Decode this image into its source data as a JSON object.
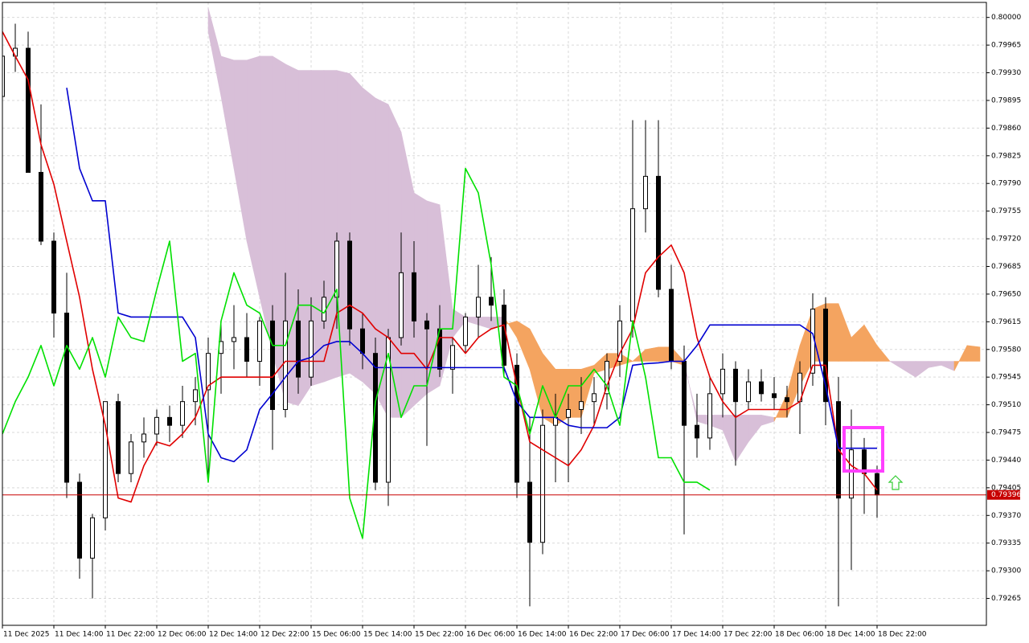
{
  "chart_data": {
    "type": "candlestick",
    "xlim": [
      0,
      153
    ],
    "ylim": [
      0.79231,
      0.80019
    ],
    "grid": true,
    "xticks": [
      {
        "value": 0,
        "label": "11 Dec 2025"
      },
      {
        "value": 8,
        "label": "11 Dec 14:00"
      },
      {
        "value": 16,
        "label": "11 Dec 22:00"
      },
      {
        "value": 24,
        "label": "12 Dec 06:00"
      },
      {
        "value": 32,
        "label": "12 Dec 14:00"
      },
      {
        "value": 40,
        "label": "12 Dec 22:00"
      },
      {
        "value": 48,
        "label": "15 Dec 06:00"
      },
      {
        "value": 56,
        "label": "15 Dec 14:00"
      },
      {
        "value": 64,
        "label": "15 Dec 22:00"
      },
      {
        "value": 72,
        "label": "16 Dec 06:00"
      },
      {
        "value": 80,
        "label": "16 Dec 14:00"
      },
      {
        "value": 88,
        "label": "16 Dec 22:00"
      },
      {
        "value": 96,
        "label": "17 Dec 06:00"
      },
      {
        "value": 104,
        "label": "17 Dec 14:00"
      },
      {
        "value": 112,
        "label": "17 Dec 22:00"
      },
      {
        "value": 120,
        "label": "18 Dec 06:00"
      },
      {
        "value": 128,
        "label": "18 Dec 14:00"
      },
      {
        "value": 136,
        "label": "18 Dec 22:00"
      }
    ],
    "yticks": [
      0.79265,
      {
        "value": 0.793,
        "label": "0.79300"
      },
      0.79335,
      {
        "value": 0.7937,
        "label": "0.79370"
      },
      0.79405,
      {
        "value": 0.7944,
        "label": "0.79440"
      },
      0.79475,
      {
        "value": 0.7951,
        "label": "0.79510"
      },
      0.79545,
      {
        "value": 0.7958,
        "label": "0.79580"
      },
      0.79615,
      {
        "value": 0.7965,
        "label": "0.79650"
      },
      0.79685,
      {
        "value": 0.7972,
        "label": "0.79720"
      },
      0.79755,
      {
        "value": 0.7979,
        "label": "0.79790"
      },
      0.79825,
      {
        "value": 0.7986,
        "label": "0.79860"
      },
      0.79895,
      {
        "value": 0.7993,
        "label": "0.79930"
      },
      0.79965,
      {
        "value": 0.8,
        "label": "0.80000"
      }
    ],
    "candles": {
      "up_color": "#ffffff",
      "down_color": "#000000",
      "x": [
        0,
        2,
        4,
        6,
        8,
        10,
        12,
        14,
        16,
        18,
        20,
        22,
        24,
        26,
        28,
        30,
        32,
        34,
        36,
        38,
        40,
        42,
        44,
        46,
        48,
        50,
        52,
        54,
        56,
        58,
        60,
        62,
        64,
        66,
        68,
        70,
        72,
        74,
        76,
        78,
        80,
        82,
        84,
        86,
        88,
        90,
        92,
        94,
        96,
        98,
        100,
        102,
        104,
        106,
        108,
        110,
        112,
        114,
        116,
        118,
        120,
        122,
        124,
        126,
        128,
        130,
        132,
        134,
        136
      ],
      "open": [
        0.799,
        0.79951,
        0.79961,
        0.79804,
        0.79717,
        0.79626,
        0.79412,
        0.79316,
        0.79367,
        0.79514,
        0.79423,
        0.79463,
        0.79473,
        0.79494,
        0.79484,
        0.79514,
        0.79529,
        0.79575,
        0.7959,
        0.79595,
        0.79565,
        0.79616,
        0.79504,
        0.79616,
        0.79545,
        0.79616,
        0.79646,
        0.79717,
        0.79606,
        0.79575,
        0.79412,
        0.79595,
        0.79677,
        0.79616,
        0.79606,
        0.79555,
        0.79585,
        0.79621,
        0.79646,
        0.79636,
        0.7956,
        0.79412,
        0.79336,
        0.79484,
        0.79494,
        0.79504,
        0.79514,
        0.79524,
        0.79565,
        0.79616,
        0.79758,
        0.79799,
        0.79656,
        0.79565,
        0.79484,
        0.79468,
        0.79524,
        0.79555,
        0.79514,
        0.79539,
        0.79524,
        0.79519,
        0.79514,
        0.7955,
        0.79631,
        0.79514,
        0.79392,
        0.79453,
        0.79423
      ],
      "high": [
        0.79992,
        0.79992,
        0.79982,
        0.7989,
        0.79728,
        0.79677,
        0.79423,
        0.79372,
        0.79514,
        0.79524,
        0.79473,
        0.79494,
        0.79504,
        0.79509,
        0.79534,
        0.79545,
        0.79595,
        0.79616,
        0.79636,
        0.79626,
        0.79621,
        0.79636,
        0.79677,
        0.79656,
        0.79646,
        0.79667,
        0.79728,
        0.79728,
        0.79626,
        0.79595,
        0.79606,
        0.79728,
        0.79717,
        0.79626,
        0.79636,
        0.79595,
        0.79626,
        0.79687,
        0.79697,
        0.79656,
        0.79575,
        0.79494,
        0.79504,
        0.79524,
        0.79524,
        0.79545,
        0.79545,
        0.79575,
        0.79636,
        0.7987,
        0.7987,
        0.7987,
        0.79687,
        0.79585,
        0.79524,
        0.79545,
        0.79575,
        0.79565,
        0.79555,
        0.79555,
        0.79545,
        0.79534,
        0.79565,
        0.79651,
        0.79646,
        0.79545,
        0.79504,
        0.79468,
        0.79433
      ],
      "low": [
        0.7989,
        0.79931,
        0.79804,
        0.79712,
        0.79595,
        0.79392,
        0.7929,
        0.79265,
        0.79351,
        0.79412,
        0.79412,
        0.79443,
        0.79458,
        0.79463,
        0.79468,
        0.79484,
        0.79412,
        0.79524,
        0.79555,
        0.79545,
        0.79534,
        0.79453,
        0.79494,
        0.79524,
        0.79534,
        0.79606,
        0.79606,
        0.79585,
        0.79555,
        0.79402,
        0.79382,
        0.79585,
        0.79595,
        0.79458,
        0.79545,
        0.79524,
        0.79575,
        0.79595,
        0.79616,
        0.79545,
        0.79392,
        0.79255,
        0.79321,
        0.79412,
        0.79412,
        0.79473,
        0.79484,
        0.79504,
        0.79545,
        0.79595,
        0.79728,
        0.79646,
        0.79555,
        0.79346,
        0.79443,
        0.79453,
        0.79494,
        0.79433,
        0.79504,
        0.79514,
        0.79504,
        0.79494,
        0.79473,
        0.79534,
        0.79484,
        0.79255,
        0.79301,
        0.79372,
        0.79367
      ],
      "close": [
        0.79951,
        0.79961,
        0.79804,
        0.79717,
        0.79626,
        0.79412,
        0.79316,
        0.79367,
        0.79514,
        0.79423,
        0.79463,
        0.79473,
        0.79494,
        0.79484,
        0.79514,
        0.79529,
        0.79575,
        0.7959,
        0.79595,
        0.79565,
        0.79616,
        0.79504,
        0.79616,
        0.79545,
        0.79616,
        0.79646,
        0.79717,
        0.79606,
        0.79575,
        0.79412,
        0.79595,
        0.79677,
        0.79616,
        0.79606,
        0.79555,
        0.79585,
        0.79621,
        0.79646,
        0.79636,
        0.7956,
        0.79412,
        0.79336,
        0.79484,
        0.79494,
        0.79504,
        0.79514,
        0.79524,
        0.79565,
        0.79616,
        0.79758,
        0.79799,
        0.79656,
        0.79565,
        0.79484,
        0.79468,
        0.79524,
        0.79555,
        0.79514,
        0.79539,
        0.79524,
        0.79519,
        0.79514,
        0.7955,
        0.79631,
        0.79514,
        0.79392,
        0.79453,
        0.79423,
        0.79396
      ]
    },
    "lines": [
      {
        "color": "#e00000",
        "values": [
          0.79982,
          0.79951,
          0.79921,
          0.79839,
          0.79789,
          0.79717,
          0.79646,
          0.79555,
          0.79484,
          0.79392,
          0.79387,
          0.79433,
          0.79463,
          0.79458,
          0.79473,
          0.79494,
          0.79534,
          0.79545,
          0.79545,
          0.79545,
          0.79545,
          0.79545,
          0.79565,
          0.79565,
          0.79565,
          0.79565,
          0.79626,
          0.79636,
          0.79626,
          0.79606,
          0.79595,
          0.79575,
          0.79575,
          0.79555,
          0.79595,
          0.79595,
          0.79575,
          0.79595,
          0.79606,
          0.79611,
          0.79534,
          0.79463,
          0.79453,
          0.79443,
          0.79433,
          0.79453,
          0.79484,
          0.79534,
          0.79575,
          0.79606,
          0.79677,
          0.79697,
          0.79712,
          0.79677,
          0.79595,
          0.79545,
          0.79514,
          0.79494,
          0.79504,
          0.79504,
          0.79504,
          0.79504,
          0.79514,
          0.7956,
          0.7956,
          0.79453,
          0.79433,
          0.79423,
          0.79402
        ]
      },
      {
        "color": "#0000d0",
        "values": [
          null,
          null,
          null,
          null,
          null,
          0.79911,
          0.79809,
          0.79768,
          0.79768,
          0.79626,
          0.79621,
          0.79621,
          0.79621,
          0.79621,
          0.79621,
          0.79595,
          0.79473,
          0.79443,
          0.79438,
          0.79453,
          0.79504,
          0.79524,
          0.79545,
          0.79565,
          0.7957,
          0.79585,
          0.7959,
          0.7959,
          0.79575,
          0.79557,
          0.79557,
          0.79557,
          0.79557,
          0.79557,
          0.79557,
          0.79557,
          0.79557,
          0.79557,
          0.79557,
          0.79557,
          0.79514,
          0.79494,
          0.79494,
          0.79494,
          0.79484,
          0.79481,
          0.79481,
          0.79481,
          0.79494,
          0.7956,
          0.79562,
          0.79563,
          0.79565,
          0.79565,
          0.79585,
          0.79611,
          0.79611,
          0.79611,
          0.79611,
          0.79611,
          0.79611,
          0.79611,
          0.79611,
          0.796,
          0.79534,
          0.79455,
          0.79455,
          0.79455,
          0.79455
        ]
      },
      {
        "color": "#00e000",
        "values": [
          0.79473,
          0.79514,
          0.79545,
          0.79585,
          0.79534,
          0.79585,
          0.79555,
          0.79595,
          0.79545,
          0.79621,
          0.79595,
          0.7959,
          0.79656,
          0.79717,
          0.79565,
          0.79575,
          0.79412,
          0.79616,
          0.79677,
          0.79636,
          0.79626,
          0.79585,
          0.79585,
          0.79636,
          0.79636,
          0.79626,
          0.79656,
          0.79392,
          0.79341,
          0.79514,
          0.79575,
          0.79494,
          0.79534,
          0.79534,
          0.79606,
          0.79606,
          0.79809,
          0.79778,
          0.79687,
          0.79545,
          0.79534,
          0.79473,
          0.79534,
          0.79494,
          0.79534,
          0.79534,
          0.79555,
          0.79534,
          0.79484,
          0.79616,
          0.79545,
          0.79443,
          0.79443,
          0.79412,
          0.79412,
          0.79402,
          null,
          null,
          null,
          null,
          null,
          null,
          null,
          null,
          null,
          null,
          null,
          null,
          null
        ]
      }
    ],
    "cloud": {
      "up_color": "#f4a460",
      "down_color": "#d8bfd8",
      "x": [
        32,
        34,
        36,
        38,
        40,
        42,
        44,
        46,
        48,
        50,
        52,
        54,
        56,
        58,
        60,
        62,
        64,
        66,
        68,
        70,
        72,
        74,
        76,
        78,
        80,
        82,
        84,
        86,
        88,
        90,
        92,
        94,
        96,
        98,
        100,
        102,
        104,
        106,
        108,
        110,
        112,
        114,
        116,
        118,
        120,
        122,
        124,
        126,
        128,
        130,
        132,
        134,
        136,
        138,
        140,
        142,
        144,
        146,
        148,
        150,
        152
      ],
      "span_a": [
        0.79982,
        0.799,
        0.79809,
        0.79717,
        0.79646,
        0.79575,
        0.79514,
        0.79509,
        0.79534,
        0.79539,
        0.79545,
        0.7955,
        0.79539,
        0.79524,
        0.79494,
        0.79494,
        0.79509,
        0.79524,
        0.79534,
        0.79595,
        0.79616,
        0.79611,
        0.79606,
        0.79611,
        0.79616,
        0.79606,
        0.79575,
        0.79555,
        0.79555,
        0.79555,
        0.7956,
        0.79575,
        0.79575,
        0.79565,
        0.7958,
        0.79583,
        0.79583,
        0.79565,
        0.79489,
        0.79484,
        0.79478,
        0.79438,
        0.79463,
        0.79484,
        0.79489,
        0.79524,
        0.79585,
        0.79631,
        0.79638,
        0.79638,
        0.79595,
        0.79611,
        0.79585,
        0.79565,
        0.79555,
        0.79545,
        0.79557,
        0.7956,
        0.79553,
        0.79585,
        0.79583
      ],
      "span_b": [
        0.80012,
        0.79951,
        0.79946,
        0.79946,
        0.79951,
        0.79951,
        0.79941,
        0.79933,
        0.79933,
        0.79933,
        0.79933,
        0.79929,
        0.79911,
        0.79898,
        0.7989,
        0.79855,
        0.79778,
        0.79768,
        0.79763,
        0.79631,
        0.79621,
        0.79621,
        0.79621,
        0.79621,
        0.79595,
        0.79555,
        0.79494,
        0.79484,
        0.79494,
        0.79494,
        0.7955,
        0.79555,
        0.7956,
        0.79565,
        0.79565,
        0.79565,
        0.79565,
        0.7956,
        0.79497,
        0.79497,
        0.79497,
        0.79497,
        0.79497,
        0.79497,
        0.79494,
        0.79494,
        0.79534,
        0.79565,
        0.79565,
        0.79565,
        0.79565,
        0.79565,
        0.79565,
        0.79565,
        0.79565,
        0.79565,
        0.79565,
        0.79565,
        0.79565,
        0.79565,
        0.79565
      ]
    },
    "current_price": {
      "value": 0.79396,
      "color": "#c80000"
    }
  }
}
